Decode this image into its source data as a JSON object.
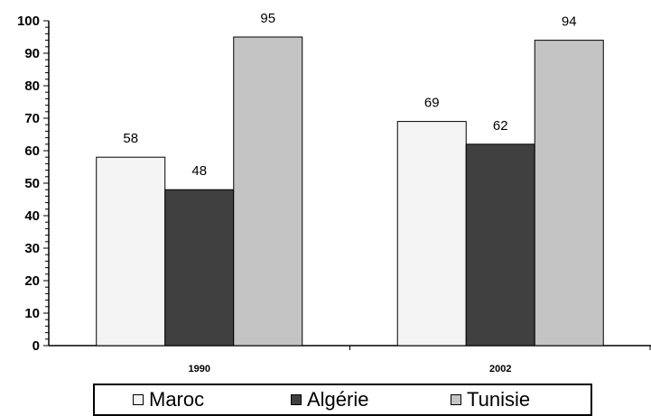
{
  "chart_data": {
    "type": "bar",
    "categories": [
      "1990",
      "2002"
    ],
    "series": [
      {
        "name": "Maroc",
        "values": [
          58,
          69
        ],
        "color": "#f4f4f4"
      },
      {
        "name": "Algérie",
        "values": [
          48,
          62
        ],
        "color": "#404040"
      },
      {
        "name": "Tunisie",
        "values": [
          95,
          94
        ],
        "color": "#c4c4c4"
      }
    ],
    "yticks": [
      "0",
      "10",
      "20",
      "30",
      "40",
      "50",
      "60",
      "70",
      "80",
      "90",
      "100"
    ],
    "ylim": [
      0,
      100
    ],
    "legend_position": "bottom",
    "grid": false
  }
}
